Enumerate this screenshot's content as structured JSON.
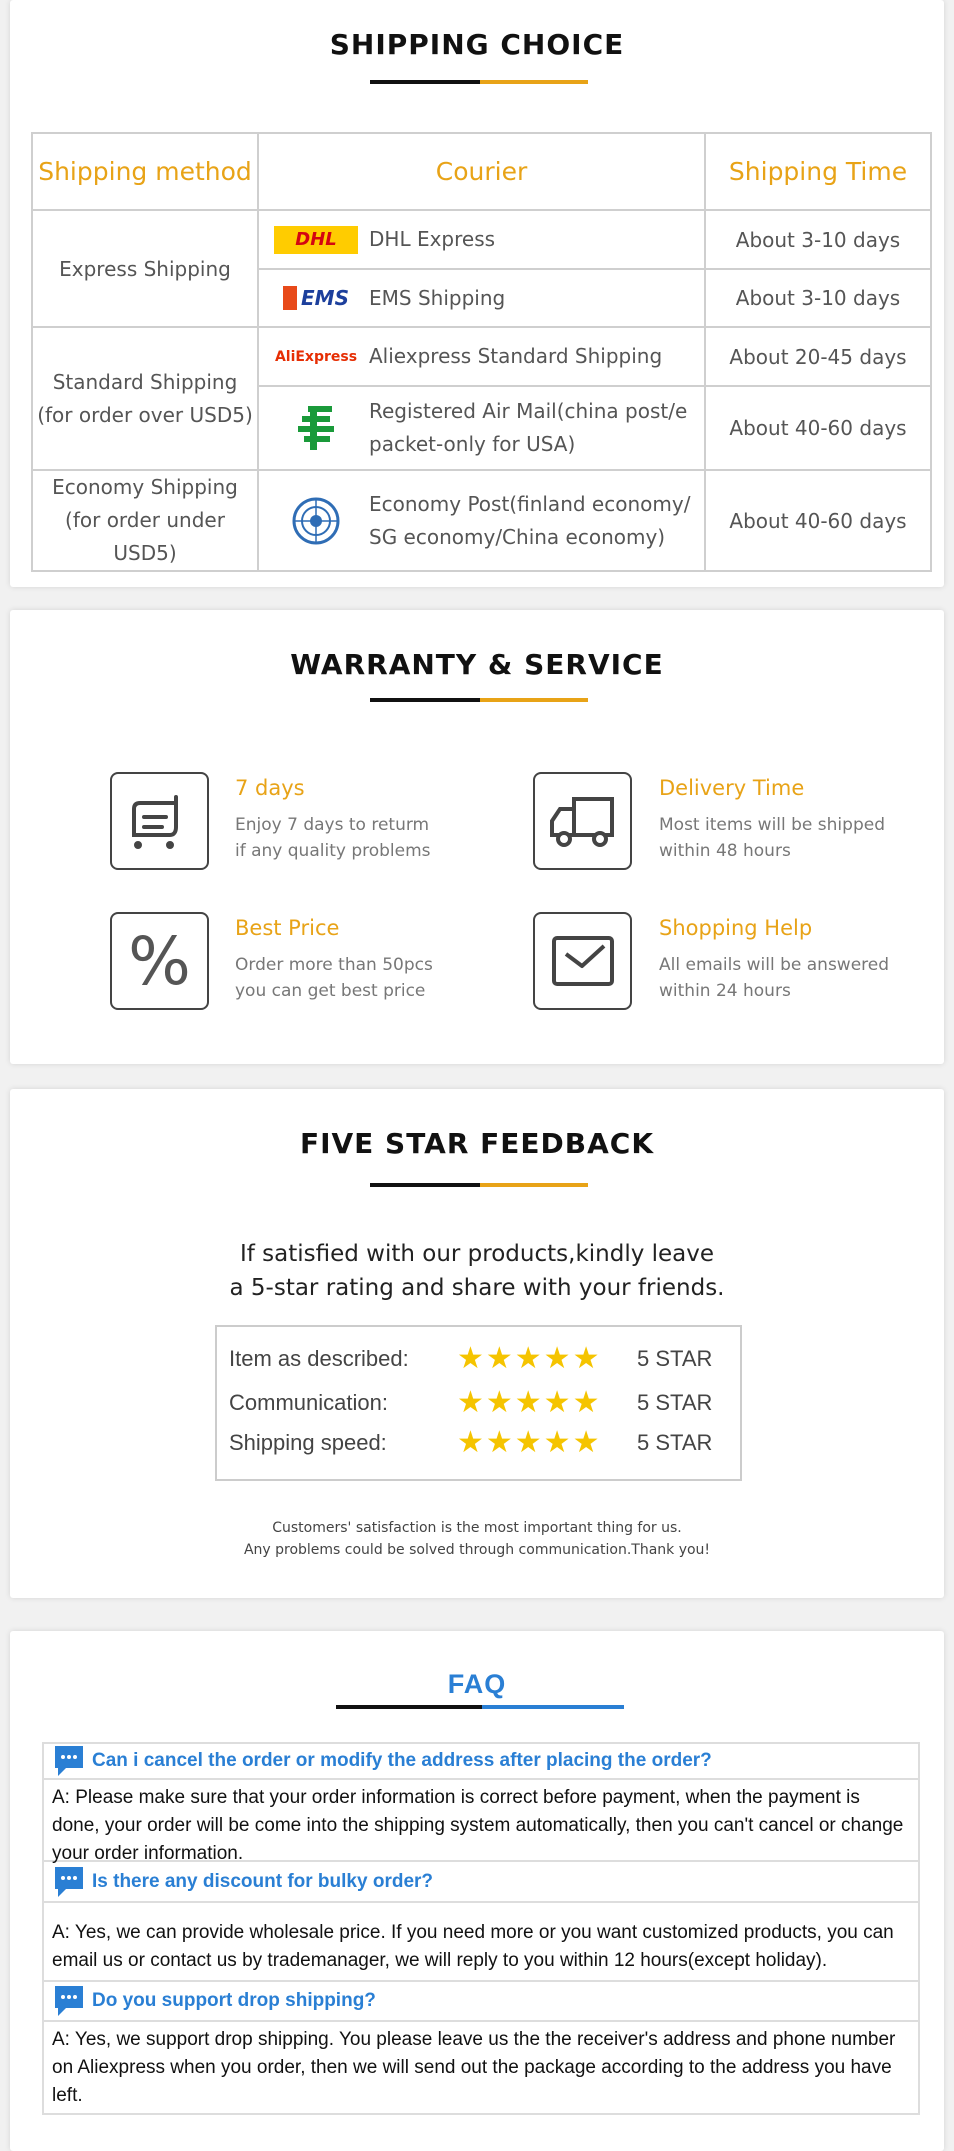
{
  "shipping": {
    "title": "SHIPPING CHOICE",
    "headers": [
      "Shipping method",
      "Courier",
      "Shipping Time"
    ],
    "groups": [
      {
        "method": [
          "Express Shipping"
        ]
      },
      {
        "method": [
          "Standard Shipping",
          "(for order over USD5)"
        ]
      },
      {
        "method": [
          "Economy Shipping",
          "(for order under USD5)"
        ]
      }
    ],
    "rows": [
      {
        "logo": "dhl-logo",
        "logo_text": "DHL",
        "courier": "DHL Express",
        "time": "About 3-10 days"
      },
      {
        "logo": "ems-logo",
        "logo_text": "EMS",
        "courier": "EMS Shipping",
        "time": "About 3-10 days"
      },
      {
        "logo": "aliexpress-logo",
        "logo_text": "AliExpress",
        "courier": "Aliexpress Standard Shipping",
        "time": "About 20-45 days"
      },
      {
        "logo": "china-post-logo",
        "courier": "Registered Air Mail(china post/e packet-only for USA)",
        "time": "About 40-60 days"
      },
      {
        "logo": "un-logo",
        "courier": "Economy Post(finland economy/ SG economy/China economy)",
        "time": "About 40-60 days"
      }
    ]
  },
  "warranty": {
    "title": "WARRANTY & SERVICE",
    "items": [
      {
        "icon": "cart-icon",
        "title": "7 days",
        "lines": [
          "Enjoy 7 days to returm",
          "if any quality problems"
        ]
      },
      {
        "icon": "truck-icon",
        "title": "Delivery Time",
        "lines": [
          "Most items will be shipped",
          "within 48 hours"
        ]
      },
      {
        "icon": "percent-icon",
        "title": "Best Price",
        "lines": [
          "Order more than 50pcs",
          "you can get best price"
        ]
      },
      {
        "icon": "envelope-icon",
        "title": "Shopping Help",
        "lines": [
          "All emails will be answered",
          "within 24 hours"
        ]
      }
    ]
  },
  "feedback": {
    "title": "FIVE STAR FEEDBACK",
    "intro": [
      "If satisfied with our products,kindly leave",
      "a 5-star rating and share with your friends."
    ],
    "ratings": [
      {
        "label": "Item as described:",
        "stars": 5,
        "value": "5 STAR"
      },
      {
        "label": "Communication:",
        "stars": 5,
        "value": "5 STAR"
      },
      {
        "label": "Shipping speed:",
        "stars": 5,
        "value": "5 STAR"
      }
    ],
    "footer": [
      "Customers' satisfaction is the most important thing for us.",
      "Any problems could be solved through communication.Thank you!"
    ]
  },
  "faq": {
    "title": "FAQ",
    "items": [
      {
        "q": "Can i cancel the order or modify the address after placing the order?",
        "a": "A: Please make sure that your order information is correct before payment, when the payment is done, your order will be come into the shipping system automatically, then you can't cancel or change your order information."
      },
      {
        "q": "Is there any discount for bulky order?",
        "a": "A: Yes, we can provide wholesale price. If you need more or you want customized products, you can email us or contact us by trademanager, we will reply to you within 12 hours(except holiday)."
      },
      {
        "q": "Do you support drop shipping?",
        "a": "A: Yes, we support drop shipping. You please leave us the the receiver's address and phone number on Aliexpress when you order, then we will send out the package according to the address you have left."
      }
    ]
  },
  "colors": {
    "accent": "#e8a317",
    "faq_blue": "#2a7fd4",
    "star": "#f5c400"
  }
}
